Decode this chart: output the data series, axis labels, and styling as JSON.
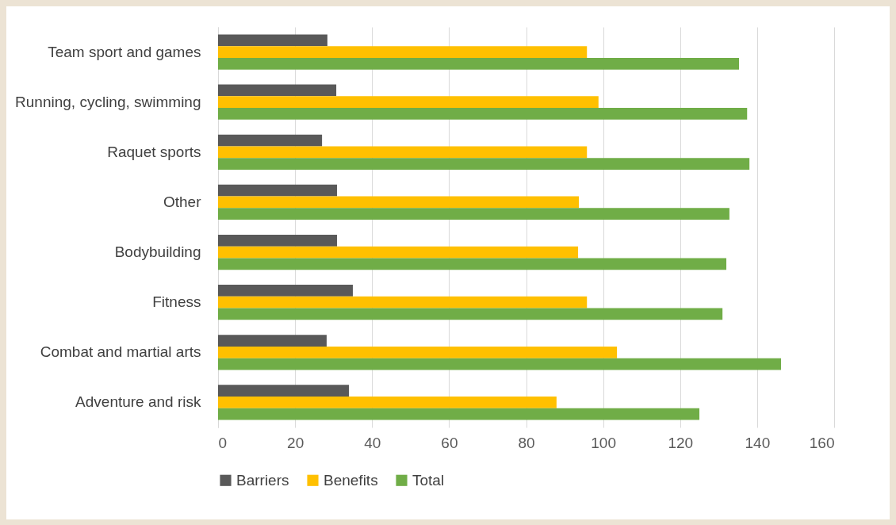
{
  "chart_data": {
    "type": "bar",
    "orientation": "horizontal",
    "categories": [
      "Team sport and games",
      "Running, cycling, swimming",
      "Raquet sports",
      "Other",
      "Bodybuilding",
      "Fitness",
      "Combat and martial arts",
      "Adventure and risk"
    ],
    "series": [
      {
        "name": "Barriers",
        "color": "#595959",
        "values": [
          28.4,
          30.7,
          27,
          30.9,
          30.9,
          35,
          28.2,
          34
        ]
      },
      {
        "name": "Benefits",
        "color": "#ffc000",
        "values": [
          95.8,
          98.8,
          95.8,
          93.7,
          93.5,
          95.8,
          103.6,
          87.9
        ]
      },
      {
        "name": "Total",
        "color": "#70ad47",
        "values": [
          135.3,
          137.4,
          138,
          132.8,
          132,
          131,
          146.2,
          125
        ]
      }
    ],
    "xlim": [
      0,
      160
    ],
    "xticks": [
      0,
      20,
      40,
      60,
      80,
      100,
      120,
      140,
      160
    ],
    "grid": "x",
    "legend": "bottom"
  }
}
